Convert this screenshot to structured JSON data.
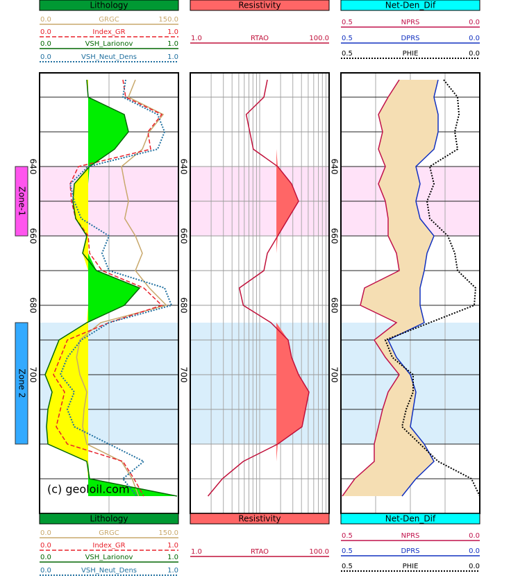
{
  "chart_data": {
    "type": "well_log",
    "watermark": "(c) geoloil.com",
    "depths": [
      615,
      620,
      625,
      630,
      635,
      640,
      645,
      650,
      655,
      660,
      665,
      670,
      675,
      680,
      685,
      690,
      695,
      700,
      705,
      710,
      715,
      720,
      725,
      730,
      735
    ],
    "ylim": [
      613,
      740
    ],
    "yticks": [
      640,
      660,
      680,
      700
    ],
    "minor_yticks": [
      620,
      630,
      640,
      650,
      660,
      670,
      680,
      690,
      700,
      710,
      720,
      730
    ],
    "zones": [
      {
        "name": "Zone-1",
        "top": 640,
        "bottom": 660,
        "color": "#ff55ee",
        "band": "#ffe2f8"
      },
      {
        "name": "Zone 2",
        "top": 685,
        "bottom": 720,
        "color": "#33aaff",
        "band": "#d9eefb"
      }
    ],
    "tracks": [
      {
        "title": "Lithology",
        "color": "#009933",
        "xgrid": [
          75
        ],
        "fill": {
          "series": 2,
          "cutoff": 0.35,
          "colors": [
            "#ffff00",
            "#00ee00"
          ]
        },
        "series": [
          {
            "name": "GRGC",
            "color": "#c8a86b",
            "style": "solid",
            "scale": [
              {
                "value": 0,
                "label": "0.0"
              },
              {
                "value": 150,
                "label": "150.0"
              }
            ],
            "values": [
              103.5,
              96,
              133.5,
              118.5,
              111,
              88.5,
              92,
              96,
              92,
              103.5,
              111,
              103.5,
              118.5,
              137,
              66,
              43.5,
              40,
              43.5,
              51,
              48,
              46.5,
              51,
              88.5,
              100,
              107
            ]
          },
          {
            "name": "Index_GR",
            "color": "#e8202a",
            "style": "dashed",
            "scale": [
              {
                "value": 0,
                "label": "0.0"
              },
              {
                "value": 1,
                "label": "1.0"
              }
            ],
            "values": [
              0.6,
              0.62,
              0.88,
              0.78,
              0.8,
              0.28,
              0.22,
              0.23,
              0.26,
              0.35,
              0.36,
              0.45,
              0.75,
              0.88,
              0.5,
              0.2,
              0.15,
              0.1,
              0.18,
              0.15,
              0.12,
              0.2,
              0.6,
              0.68,
              0.75
            ]
          },
          {
            "name": "VSH_Larionov",
            "color": "#006600",
            "style": "solid",
            "scale": [
              {
                "value": 0,
                "label": "0.0"
              },
              {
                "value": 1,
                "label": "1.0"
              }
            ],
            "values": [
              0.34,
              0.35,
              0.61,
              0.64,
              0.54,
              0.36,
              0.25,
              0.24,
              0.26,
              0.34,
              0.31,
              0.41,
              0.72,
              0.61,
              0.34,
              0.14,
              0.09,
              0.04,
              0.09,
              0.06,
              0.05,
              0.06,
              0.34,
              0.36,
              0.99
            ]
          },
          {
            "name": "VSH_Neut_Dens",
            "color": "#1f6f9f",
            "style": "dotted",
            "scale": [
              {
                "value": 0,
                "label": "0.0"
              },
              {
                "value": 1,
                "label": "1.0"
              }
            ],
            "values": [
              0.62,
              0.6,
              0.85,
              0.9,
              0.85,
              0.35,
              0.22,
              0.25,
              0.3,
              0.5,
              0.45,
              0.5,
              0.9,
              0.95,
              0.5,
              0.3,
              0.2,
              0.15,
              0.25,
              0.2,
              0.25,
              0.5,
              0.75,
              0.6,
              0.7
            ]
          }
        ]
      },
      {
        "title": "Resistivity",
        "color": "#ff6666",
        "log": true,
        "xgrid": [
          1,
          2,
          3,
          4,
          5,
          6,
          7,
          8,
          9,
          10,
          20,
          30,
          40,
          50,
          60,
          70,
          80,
          90,
          100
        ],
        "fill": {
          "series": 0,
          "cutoff": 17.4,
          "colors": [
            null,
            "#ff6666"
          ]
        },
        "series": [
          {
            "name": "RTAO",
            "color": "#c0103a",
            "style": "solid",
            "scale": [
              {
                "value": 1,
                "label": "1.0"
              },
              {
                "value": 100,
                "label": "100.0"
              }
            ],
            "values": [
              12.9,
              11.5,
              6.4,
              7.2,
              8.1,
              18.2,
              28.8,
              36.3,
              25.7,
              18.2,
              12.9,
              11.5,
              5.1,
              5.8,
              14.5,
              25.7,
              28.8,
              36.3,
              51.3,
              45.7,
              40.7,
              18.2,
              5.8,
              2.9,
              1.8
            ]
          }
        ]
      },
      {
        "title": "Net-Den_Dif",
        "color": "#00ffff",
        "xgrid": [
          0.375,
          0.25,
          0.125
        ],
        "fill": {
          "between": [
            0,
            1
          ],
          "color": "#f5deb3"
        },
        "series": [
          {
            "name": "NPRS",
            "color": "#c0104a",
            "style": "solid",
            "scale": [
              {
                "value": 0.5,
                "label": "0.5"
              },
              {
                "value": 0,
                "label": "0.0"
              }
            ],
            "values": [
              0.29,
              0.33,
              0.365,
              0.35,
              0.365,
              0.34,
              0.365,
              0.34,
              0.33,
              0.33,
              0.3,
              0.29,
              0.415,
              0.43,
              0.3,
              0.38,
              0.34,
              0.29,
              0.33,
              0.35,
              0.365,
              0.38,
              0.38,
              0.45,
              0.495
            ]
          },
          {
            "name": "DPRS",
            "color": "#1030c0",
            "style": "solid",
            "scale": [
              {
                "value": 0.5,
                "label": "0.5"
              },
              {
                "value": 0,
                "label": "0.0"
              }
            ],
            "values": [
              0.15,
              0.165,
              0.15,
              0.15,
              0.165,
              0.23,
              0.215,
              0.23,
              0.215,
              0.165,
              0.19,
              0.2,
              0.215,
              0.215,
              0.2,
              0.33,
              0.3,
              0.25,
              0.23,
              0.24,
              0.25,
              0.2,
              0.165,
              0.23,
              0.28
            ]
          },
          {
            "name": "PHIE",
            "color": "#000000",
            "style": "dotted",
            "scale": [
              {
                "value": 0.5,
                "label": "0.5"
              },
              {
                "value": 0,
                "label": "0.0"
              }
            ],
            "values": [
              0.13,
              0.08,
              0.075,
              0.09,
              0.08,
              0.18,
              0.165,
              0.19,
              0.18,
              0.115,
              0.09,
              0.08,
              0.015,
              0.02,
              0.18,
              0.34,
              0.315,
              0.24,
              0.24,
              0.265,
              0.28,
              0.215,
              0.15,
              0.03,
              0
            ]
          }
        ]
      }
    ]
  }
}
